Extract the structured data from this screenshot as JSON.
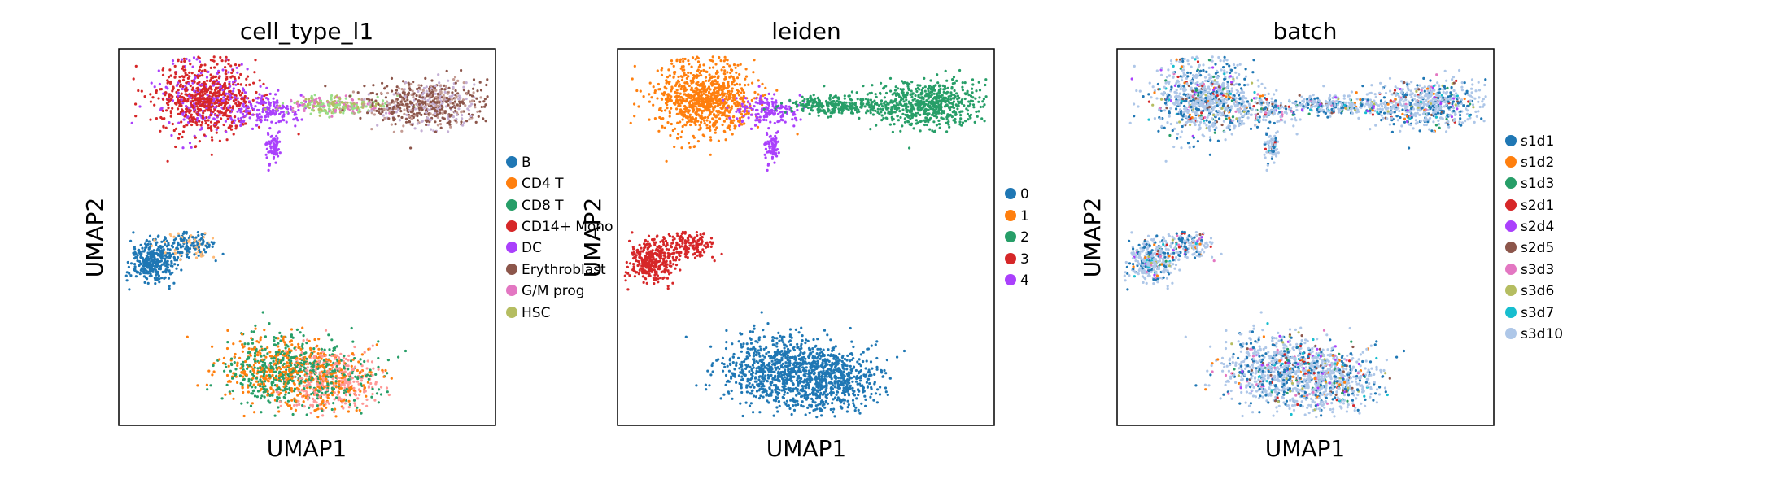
{
  "chart_data": [
    {
      "type": "scatter",
      "title": "cell_type_l1",
      "xlabel": "UMAP1",
      "ylabel": "UMAP2",
      "legend": "right",
      "legend_items": [
        {
          "label": "B",
          "color": "#1f77b4"
        },
        {
          "label": "CD4 T",
          "color": "#ff7f0e"
        },
        {
          "label": "CD8 T",
          "color": "#279e68"
        },
        {
          "label": "CD14+ Mono",
          "color": "#d62728"
        },
        {
          "label": "DC",
          "color": "#aa40fc"
        },
        {
          "label": "Erythroblast",
          "color": "#8c564b"
        },
        {
          "label": "G/M prog",
          "color": "#e377c2"
        },
        {
          "label": "HSC",
          "color": "#b5bd61"
        }
      ],
      "extra_colors": [
        "#98df8a",
        "#ff9896",
        "#c5b0d5",
        "#c49c94",
        "#ffbb78"
      ]
    },
    {
      "type": "scatter",
      "title": "leiden",
      "xlabel": "UMAP1",
      "ylabel": "UMAP2",
      "legend": "right",
      "legend_items": [
        {
          "label": "0",
          "color": "#1f77b4"
        },
        {
          "label": "1",
          "color": "#ff7f0e"
        },
        {
          "label": "2",
          "color": "#279e68"
        },
        {
          "label": "3",
          "color": "#d62728"
        },
        {
          "label": "4",
          "color": "#aa40fc"
        }
      ]
    },
    {
      "type": "scatter",
      "title": "batch",
      "xlabel": "UMAP1",
      "ylabel": "UMAP2",
      "legend": "right",
      "legend_items": [
        {
          "label": "s1d1",
          "color": "#1f77b4"
        },
        {
          "label": "s1d2",
          "color": "#ff7f0e"
        },
        {
          "label": "s1d3",
          "color": "#279e68"
        },
        {
          "label": "s2d1",
          "color": "#d62728"
        },
        {
          "label": "s2d4",
          "color": "#aa40fc"
        },
        {
          "label": "s2d5",
          "color": "#8c564b"
        },
        {
          "label": "s3d3",
          "color": "#e377c2"
        },
        {
          "label": "s3d6",
          "color": "#b5bd61"
        },
        {
          "label": "s3d7",
          "color": "#17becf"
        },
        {
          "label": "s3d10",
          "color": "#aec7e8"
        }
      ]
    }
  ]
}
